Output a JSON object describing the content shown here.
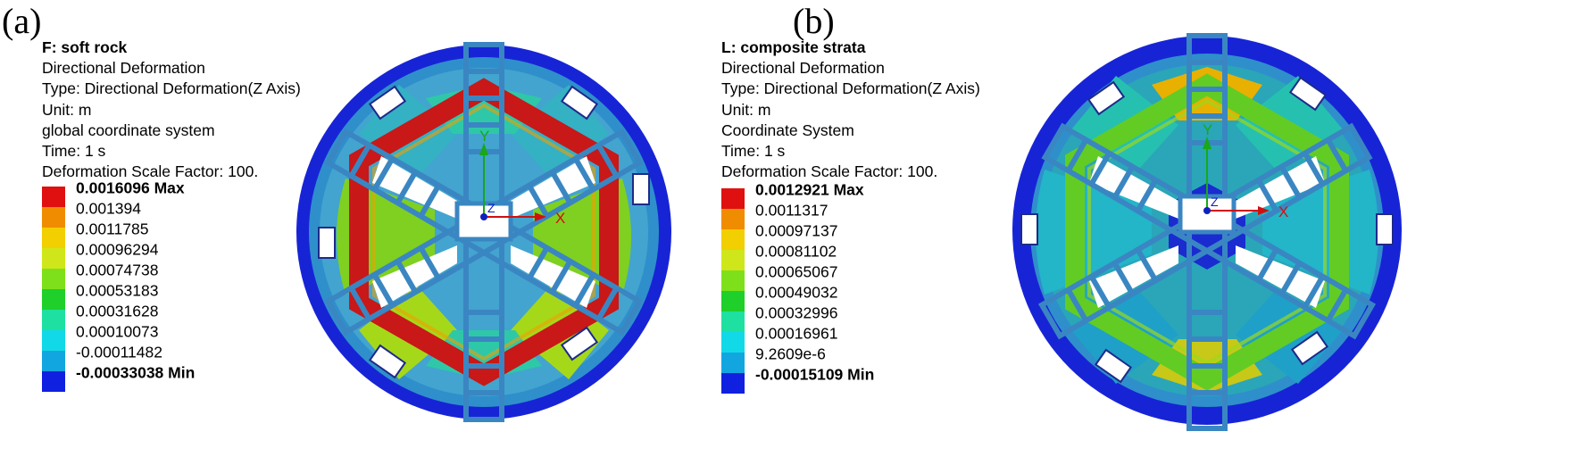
{
  "panels": [
    {
      "letter": "(a)",
      "title": "F: soft rock",
      "lines": [
        "Directional Deformation",
        "Type: Directional Deformation(Z Axis)",
        "Unit: m",
        "global coordinate system",
        "Time: 1 s",
        "Deformation Scale Factor: 100."
      ],
      "legend": [
        "0.0016096 Max",
        "0.001394",
        "0.0011785",
        "0.00096294",
        "0.00074738",
        "0.00053183",
        "0.00031628",
        "0.00010073",
        "-0.00011482",
        "-0.00033038 Min"
      ],
      "axes": {
        "x": "X",
        "y": "Y",
        "z": "Z"
      }
    },
    {
      "letter": "(b)",
      "title": "L: composite strata",
      "lines": [
        "Directional Deformation",
        "Type: Directional Deformation(Z Axis)",
        "Unit: m",
        "Coordinate System",
        "Time: 1 s",
        "Deformation Scale Factor: 100."
      ],
      "legend": [
        "0.0012921 Max",
        "0.0011317",
        "0.00097137",
        "0.00081102",
        "0.00065067",
        "0.00049032",
        "0.00032996",
        "0.00016961",
        "9.2609e-6",
        "-0.00015109 Min"
      ],
      "axes": {
        "x": "X",
        "y": "Y",
        "z": "Z"
      }
    }
  ],
  "colors": {
    "scale": [
      "#e01010",
      "#f08c00",
      "#f2cf00",
      "#cfe61a",
      "#7ee01a",
      "#1fcf2a",
      "#1ee0a0",
      "#12d9e8",
      "#12a6e0",
      "#1020e0"
    ],
    "frame": "#3a86c2"
  }
}
